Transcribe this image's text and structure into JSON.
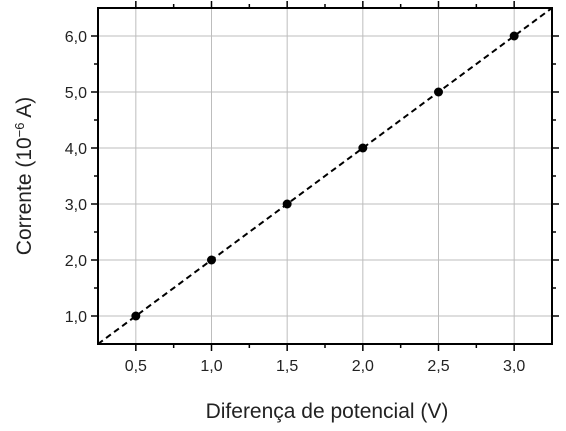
{
  "chart_data": {
    "type": "scatter",
    "xlabel": "Diferença de potencial (V)",
    "ylabel_main": "Corrente (10",
    "ylabel_exp": "−6",
    "ylabel_tail": " A)",
    "x_ticks": [
      "0,5",
      "1,0",
      "1,5",
      "2,0",
      "2,5",
      "3,0"
    ],
    "y_ticks": [
      "1,0",
      "2,0",
      "3,0",
      "4,0",
      "5,0",
      "6,0"
    ],
    "xlim": [
      0.25,
      3.25
    ],
    "ylim": [
      0.5,
      6.5
    ],
    "grid": true,
    "series": [
      {
        "x": [
          0.5,
          1.0,
          1.5,
          2.0,
          2.5,
          3.0
        ],
        "y": [
          1.0,
          2.0,
          3.0,
          4.0,
          5.0,
          6.0
        ],
        "marker_color": "#000000"
      }
    ],
    "fit_line": {
      "style": "dashed",
      "x": [
        0.25,
        3.25
      ],
      "y": [
        0.5,
        6.5
      ],
      "color": "#000000"
    },
    "grid_color": "#bdbdbd",
    "axis_color": "#000000"
  }
}
